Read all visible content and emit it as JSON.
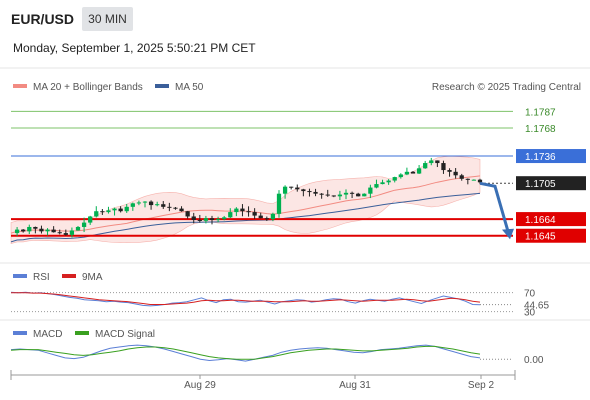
{
  "header": {
    "symbol": "EUR/USD",
    "timeframe": "30 MIN",
    "datetime": "Monday, September 1, 2025 5:50:21 PM CET"
  },
  "colors": {
    "bollinger": "#f28b82",
    "ma50": "#3b5f9a",
    "resistance": "#7ec36a",
    "pivot": "#3a6fd8",
    "support": "#e00000",
    "bull_candle": "#00b050",
    "bear_candle": "#222222",
    "rsi": "#5b7fd6",
    "ma9": "#d62020",
    "macd": "#5b7fd6",
    "macd_signal": "#3aa020"
  },
  "chart_data": [
    {
      "type": "candlestick",
      "legend": [
        "MA 20 + Bollinger Bands",
        "MA 50"
      ],
      "watermark": "Research © 2025 Trading Central",
      "ylim": [
        1.1615,
        1.18
      ],
      "x_ticks": [
        "Aug 29",
        "Aug 31",
        "Sep 2"
      ],
      "levels": [
        {
          "label": "1.1787",
          "value": 1.1787,
          "kind": "resistance"
        },
        {
          "label": "1.1768",
          "value": 1.1768,
          "kind": "resistance"
        },
        {
          "label": "1.1736",
          "value": 1.1736,
          "kind": "pivot"
        },
        {
          "label": "1.1705",
          "value": 1.1705,
          "kind": "last"
        },
        {
          "label": "1.1664",
          "value": 1.1664,
          "kind": "support"
        },
        {
          "label": "1.1645",
          "value": 1.1645,
          "kind": "support"
        }
      ],
      "close_path": [
        1.1648,
        1.1652,
        1.165,
        1.1655,
        1.1653,
        1.165,
        1.1652,
        1.1649,
        1.1648,
        1.1646,
        1.1651,
        1.1655,
        1.166,
        1.1667,
        1.1673,
        1.1672,
        1.1674,
        1.1676,
        1.1673,
        1.1678,
        1.1682,
        1.1683,
        1.1684,
        1.168,
        1.1681,
        1.1678,
        1.1677,
        1.1676,
        1.1673,
        1.1667,
        1.1663,
        1.1662,
        1.1665,
        1.1663,
        1.1664,
        1.1666,
        1.1672,
        1.1676,
        1.1673,
        1.1672,
        1.1668,
        1.1665,
        1.1664,
        1.167,
        1.1693,
        1.1701,
        1.17,
        1.1698,
        1.1696,
        1.1695,
        1.1693,
        1.1692,
        1.1691,
        1.169,
        1.1692,
        1.1694,
        1.1693,
        1.169,
        1.1693,
        1.17,
        1.1704,
        1.1706,
        1.1708,
        1.1712,
        1.1715,
        1.1718,
        1.1716,
        1.1722,
        1.1728,
        1.1731,
        1.1728,
        1.172,
        1.1718,
        1.1714,
        1.171,
        1.1709,
        1.1709,
        1.1706
      ]
    },
    {
      "type": "line",
      "legend": [
        "RSI",
        "9MA"
      ],
      "ylim": [
        27,
        82
      ],
      "ticks": [
        "70",
        "30"
      ],
      "last_label": "44.65",
      "rsi": [
        71,
        70,
        71,
        69,
        70,
        68,
        66,
        63,
        60,
        58,
        55,
        54,
        53,
        51,
        52,
        50,
        49,
        46,
        43,
        42,
        43,
        45,
        48,
        49,
        51,
        55,
        59,
        53,
        49,
        55,
        56,
        51,
        50,
        52,
        54,
        50,
        46,
        51,
        53,
        55,
        54,
        50,
        52,
        55,
        57,
        56,
        51,
        48,
        53,
        56,
        54,
        52,
        56,
        59,
        55,
        51,
        47,
        53,
        58,
        63,
        60,
        57,
        52,
        45,
        44.65
      ],
      "ma9": [
        70,
        70,
        70,
        69,
        69,
        68,
        67,
        65,
        63,
        61,
        59,
        57,
        55,
        54,
        53,
        52,
        51,
        49,
        47,
        45,
        45,
        45,
        46,
        47,
        48,
        50,
        53,
        54,
        53,
        53,
        54,
        54,
        53,
        52,
        52,
        52,
        51,
        51,
        51,
        52,
        53,
        52,
        52,
        53,
        54,
        55,
        54,
        53,
        52,
        53,
        54,
        54,
        54,
        55,
        56,
        55,
        53,
        52,
        54,
        56,
        58,
        57,
        55,
        52,
        50
      ]
    },
    {
      "type": "line",
      "legend": [
        "MACD",
        "MACD Signal"
      ],
      "ylim": [
        -0.002,
        0.003
      ],
      "last_label": "0.00",
      "macd": [
        0.0015,
        0.0016,
        0.0015,
        0.0014,
        0.001,
        0.0006,
        0.0002,
        0.0001,
        0.0003,
        0.0008,
        0.0013,
        0.0017,
        0.0019,
        0.0021,
        0.0022,
        0.0021,
        0.0019,
        0.0016,
        0.0012,
        0.0008,
        0.0004,
        0.0,
        -0.0002,
        -0.0001,
        0.0001,
        -0.0001,
        -0.0003,
        0.0,
        0.0003,
        0.0006,
        0.0011,
        0.0014,
        0.0016,
        0.0017,
        0.0018,
        0.0017,
        0.0015,
        0.0013,
        0.0011,
        0.001,
        0.0012,
        0.0015,
        0.0016,
        0.0017,
        0.0019,
        0.0021,
        0.0022,
        0.002,
        0.0016,
        0.0012,
        0.0008,
        0.0004,
        0.0002
      ],
      "signal": [
        0.0014,
        0.0015,
        0.0015,
        0.0015,
        0.0013,
        0.0011,
        0.0009,
        0.0007,
        0.0006,
        0.0007,
        0.0009,
        0.0011,
        0.0013,
        0.0016,
        0.0018,
        0.0019,
        0.0019,
        0.0018,
        0.0016,
        0.0013,
        0.001,
        0.0007,
        0.0004,
        0.0002,
        0.0001,
        0.0,
        0.0,
        0.0,
        0.0002,
        0.0004,
        0.0007,
        0.001,
        0.0012,
        0.0014,
        0.0015,
        0.0016,
        0.0016,
        0.0015,
        0.0014,
        0.0013,
        0.0013,
        0.0014,
        0.0015,
        0.0016,
        0.0017,
        0.0019,
        0.002,
        0.002,
        0.0018,
        0.0016,
        0.0013,
        0.001,
        0.0008
      ]
    }
  ]
}
